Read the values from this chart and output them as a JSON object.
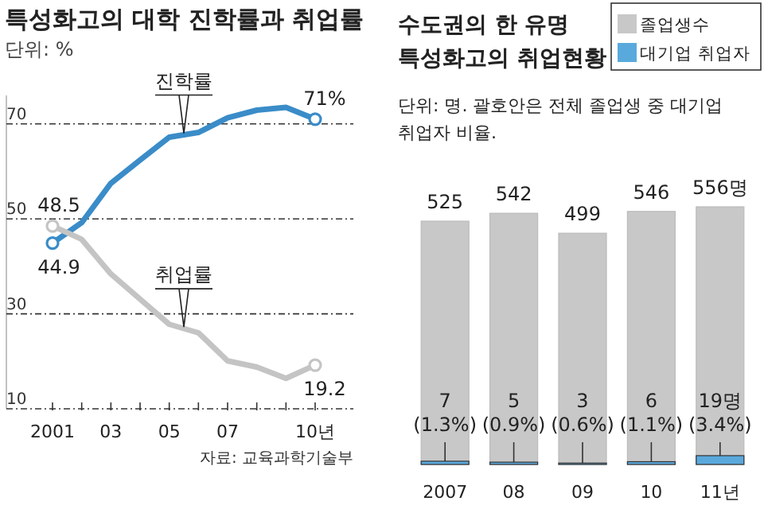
{
  "chart_data": [
    {
      "type": "line",
      "title": "특성화고의 대학 진학률과 취업률",
      "subtitle": "단위: %",
      "annotations": [
        "자료: 교육과학기술부"
      ],
      "categories": [
        "2001",
        null,
        "03",
        null,
        "05",
        null,
        "07",
        null,
        null,
        "10년"
      ],
      "ylim": [
        10,
        76
      ],
      "yticks": [
        10,
        30,
        50,
        70
      ],
      "grid": "y",
      "series": [
        {
          "name": "진학률",
          "color": "#3a8cc8",
          "values": [
            44.9,
            49.2,
            57.5,
            62.4,
            67.2,
            68.2,
            71.3,
            72.9,
            73.5,
            71
          ],
          "value_labels": [
            "44.9",
            null,
            null,
            null,
            null,
            null,
            null,
            null,
            null,
            "71%"
          ]
        },
        {
          "name": "취업률",
          "color": "#c4c4c4",
          "values": [
            48.5,
            45.7,
            38.4,
            33.1,
            27.8,
            26.0,
            20.1,
            18.8,
            16.4,
            19.2
          ],
          "value_labels": [
            "48.5",
            null,
            null,
            null,
            null,
            null,
            null,
            null,
            null,
            "19.2"
          ]
        }
      ]
    },
    {
      "type": "bar",
      "title": "수도권의 한 유명 특성화고의 취업현황",
      "subtitle": "단위: 명. 괄호안은 전체 졸업생 중 대기업 취업자 비율.",
      "categories": [
        "2007",
        "08",
        "09",
        "10",
        "11년"
      ],
      "legend": "top right",
      "series": [
        {
          "name": "졸업생수",
          "color": "#c8c8c8",
          "values": [
            525,
            542,
            499,
            546,
            556
          ],
          "value_labels": [
            "525",
            "542",
            "499",
            "546",
            "556명"
          ]
        },
        {
          "name": "대기업 취업자",
          "color": "#5aa9dd",
          "values": [
            7,
            5,
            3,
            6,
            19
          ],
          "value_labels": [
            "7 (1.3%)",
            "5 (0.9%)",
            "3 (0.6%)",
            "6 (1.1%)",
            "19명 (3.4%)"
          ]
        }
      ]
    }
  ]
}
